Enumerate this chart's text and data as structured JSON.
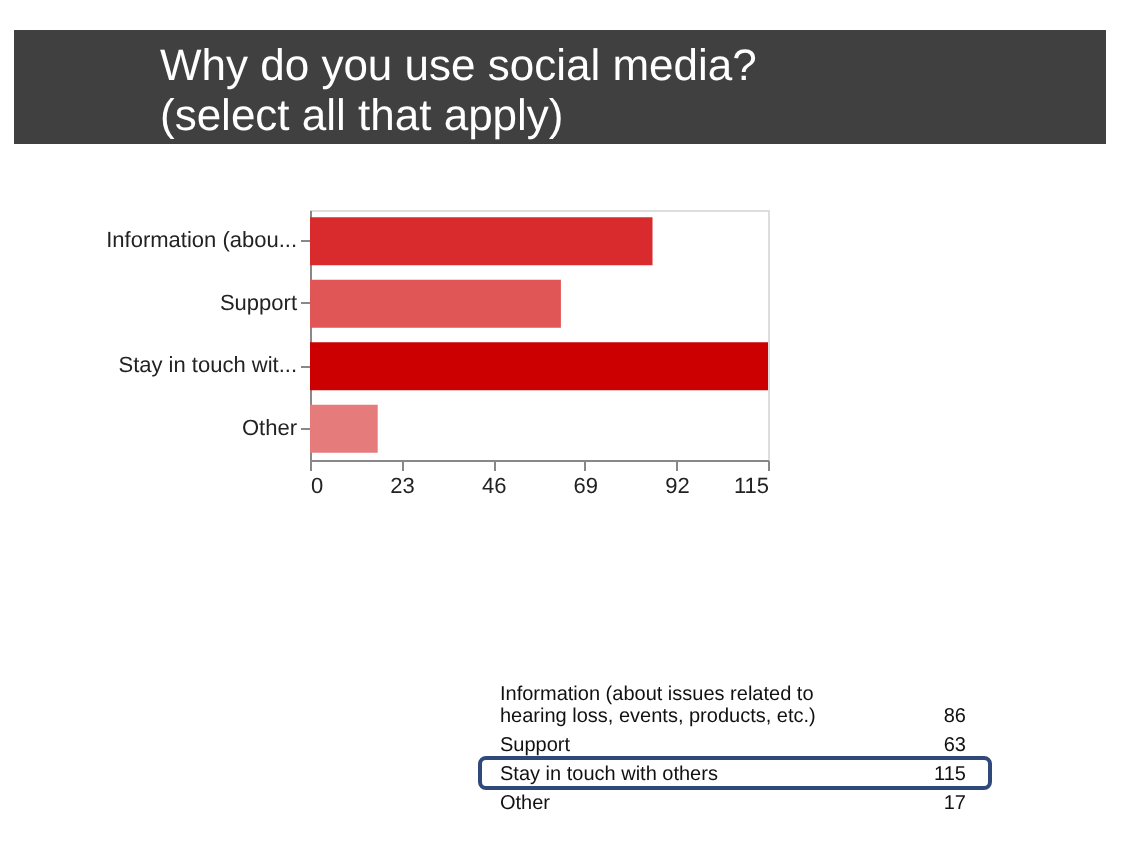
{
  "chart_data": {
    "type": "bar",
    "orientation": "horizontal",
    "title": "Why do you use social media?\n(select all that apply)",
    "categories": [
      "Information (abou...",
      "Support",
      "Stay in touch wit...",
      "Other"
    ],
    "values": [
      86,
      63,
      115,
      17
    ],
    "colors": [
      "#d92b2d",
      "#e05555",
      "#cc0000",
      "#e67b7b"
    ],
    "xlim": [
      0,
      115
    ],
    "xticks": [
      0,
      23,
      46,
      69,
      92,
      115
    ],
    "grid": false,
    "annotations": [
      "Information (about issues related to hearing loss, events, products, etc.)",
      "86",
      "Support",
      "63",
      "Stay in touch with others",
      "115",
      "Other",
      "17"
    ]
  }
}
